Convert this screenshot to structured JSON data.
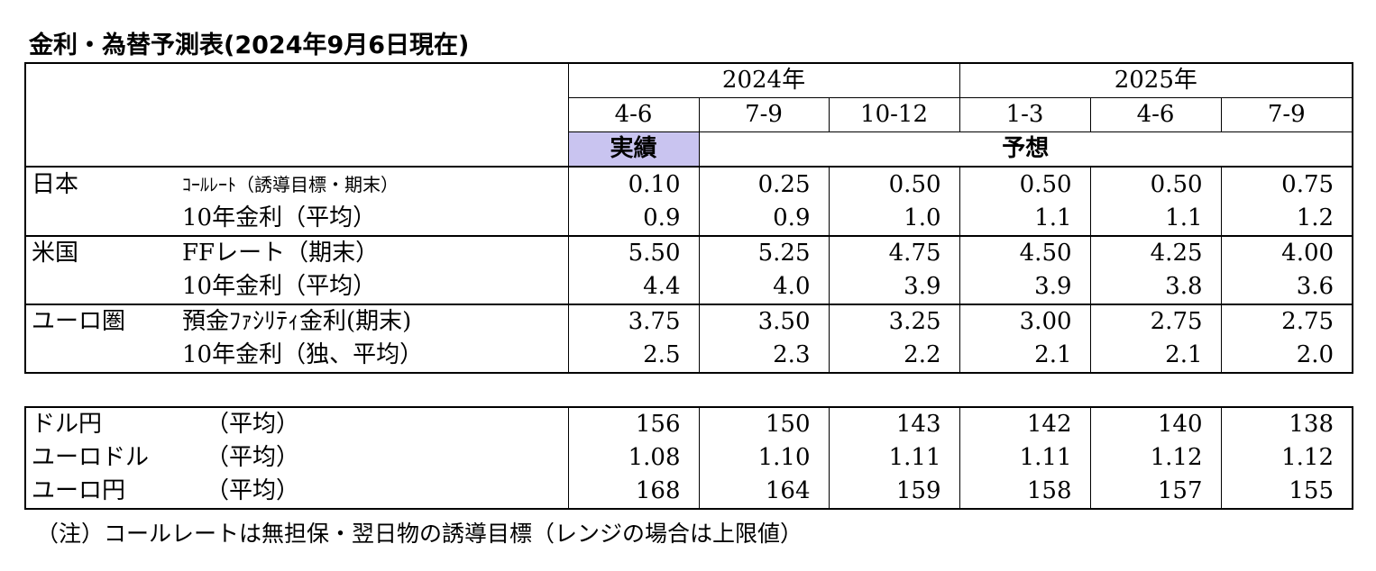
{
  "title": "金利・為替予測表(2024年9月6日現在)",
  "years": [
    {
      "label": "2024年",
      "span": 3
    },
    {
      "label": "2025年",
      "span": 3
    }
  ],
  "quarters": [
    "4-6",
    "7-9",
    "10-12",
    "1-3",
    "4-6",
    "7-9"
  ],
  "actual_label": "実績",
  "forecast_label": "予想",
  "rates": [
    {
      "country": "日本",
      "rows": [
        {
          "label": "ｺｰﾙﾚｰﾄ（誘導目標・期末）",
          "values": [
            "0.10",
            "0.25",
            "0.50",
            "0.50",
            "0.50",
            "0.75"
          ]
        },
        {
          "label": "10年金利（平均）",
          "values": [
            "0.9",
            "0.9",
            "1.0",
            "1.1",
            "1.1",
            "1.2"
          ]
        }
      ]
    },
    {
      "country": "米国",
      "rows": [
        {
          "label": "FFレート（期末）",
          "values": [
            "5.50",
            "5.25",
            "4.75",
            "4.50",
            "4.25",
            "4.00"
          ]
        },
        {
          "label": "10年金利（平均）",
          "values": [
            "4.4",
            "4.0",
            "3.9",
            "3.9",
            "3.8",
            "3.6"
          ]
        }
      ]
    },
    {
      "country": "ユーロ圏",
      "rows": [
        {
          "label": "預金ﾌｧｼﾘﾃｨ金利(期末)",
          "values": [
            "3.75",
            "3.50",
            "3.25",
            "3.00",
            "2.75",
            "2.75"
          ]
        },
        {
          "label": "10年金利（独、平均）",
          "values": [
            "2.5",
            "2.3",
            "2.2",
            "2.1",
            "2.1",
            "2.0"
          ]
        }
      ]
    }
  ],
  "fx": [
    {
      "pair": "ドル円",
      "basis": "（平均）",
      "values": [
        "156",
        "150",
        "143",
        "142",
        "140",
        "138"
      ]
    },
    {
      "pair": "ユーロドル",
      "basis": "（平均）",
      "values": [
        "1.08",
        "1.10",
        "1.11",
        "1.11",
        "1.12",
        "1.12"
      ]
    },
    {
      "pair": "ユーロ円",
      "basis": "（平均）",
      "values": [
        "168",
        "164",
        "159",
        "158",
        "157",
        "155"
      ]
    }
  ],
  "note": "（注）コールレートは無担保・翌日物の誘導目標（レンジの場合は上限値）",
  "colors": {
    "actual_highlight": "#c9c4f0"
  }
}
